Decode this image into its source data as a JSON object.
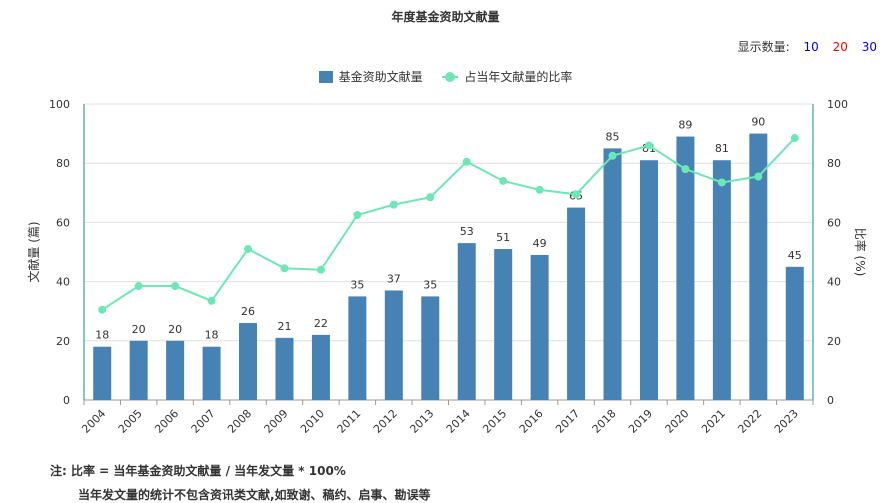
{
  "title": "年度基金资助文献量",
  "display_count": {
    "label": "显示数量:",
    "options": [
      {
        "value": "10",
        "color": "#0000ff"
      },
      {
        "value": "20",
        "color": "#ff0000"
      },
      {
        "value": "30",
        "color": "#0000ff"
      }
    ]
  },
  "legend": {
    "bar_label": "基金资助文献量",
    "line_label": "占当年文献量的比率"
  },
  "colors": {
    "bar": "#4682b4",
    "line": "#6ee7b7",
    "axis": "#0d8f8f"
  },
  "notes": {
    "line1": "注:  比率 = 当年基金资助文献量 / 当年发文量 * 100%",
    "line2": "当年发文量的统计不包含资讯类文献,如致谢、稿约、启事、勘误等"
  },
  "chart_data": {
    "type": "bar",
    "categories": [
      "2004",
      "2005",
      "2006",
      "2007",
      "2008",
      "2009",
      "2010",
      "2011",
      "2012",
      "2013",
      "2014",
      "2015",
      "2016",
      "2017",
      "2018",
      "2019",
      "2020",
      "2021",
      "2022",
      "2023"
    ],
    "series": [
      {
        "name": "基金资助文献量",
        "type": "bar",
        "axis": "left",
        "values": [
          18,
          20,
          20,
          18,
          26,
          21,
          22,
          35,
          37,
          35,
          53,
          51,
          49,
          65,
          85,
          81,
          89,
          81,
          90,
          45
        ]
      },
      {
        "name": "占当年文献量的比率",
        "type": "line",
        "axis": "right",
        "values": [
          30.5,
          38.5,
          38.5,
          33.5,
          51,
          44.5,
          44,
          62.5,
          66,
          68.5,
          80.5,
          74,
          71,
          69.5,
          82.5,
          86,
          78,
          73.5,
          75.5,
          88.5
        ]
      }
    ],
    "ylabel": "文献量 (篇)",
    "y2label": "比率 (%)",
    "ylim": [
      0,
      100
    ],
    "y2lim": [
      0,
      100
    ],
    "yticks": [
      0,
      20,
      40,
      60,
      80,
      100
    ],
    "y2ticks": [
      0,
      20,
      40,
      60,
      80,
      100
    ],
    "grid": true,
    "legend_position": "top-center"
  }
}
